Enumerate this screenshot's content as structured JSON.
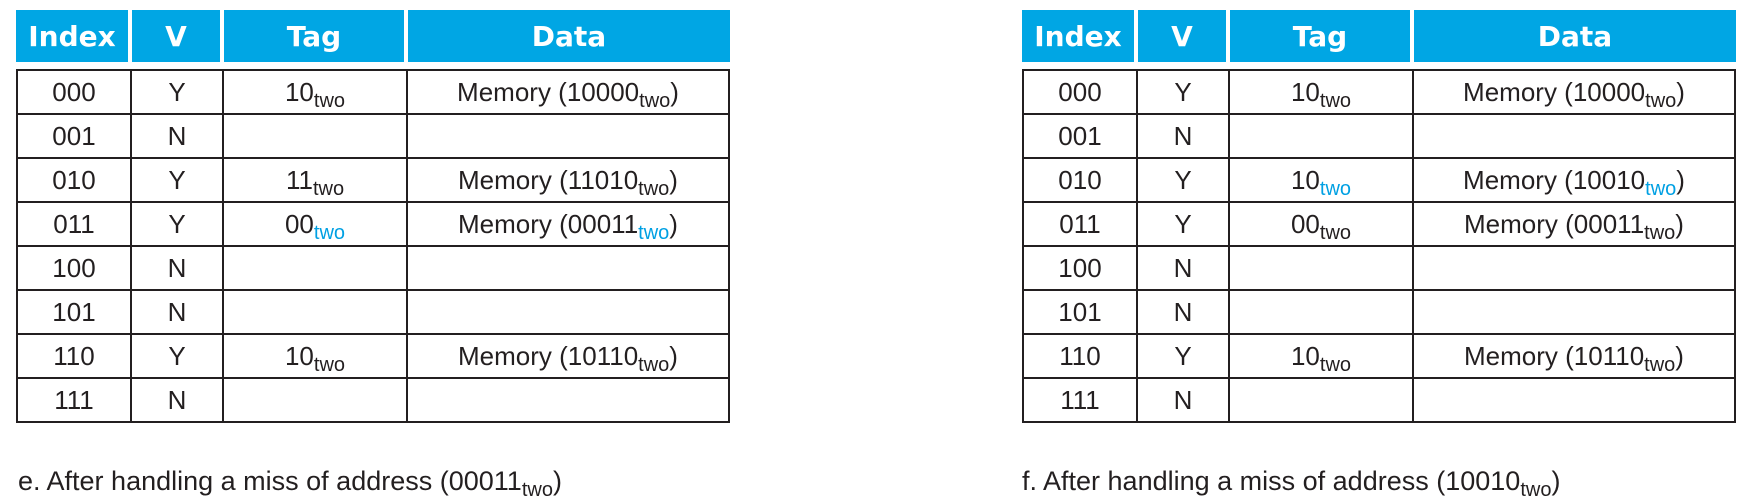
{
  "columns": [
    "Index",
    "V",
    "Tag",
    "Data"
  ],
  "sub_label": "two",
  "panels": [
    {
      "caption_prefix": "e. After handling a miss of address (",
      "caption_value": "00011",
      "caption_suffix": ")",
      "rows": [
        {
          "index": "000",
          "v": "Y",
          "tag": "10",
          "data_prefix": "Memory (",
          "data_value": "10000",
          "data_suffix": ")",
          "highlight": false
        },
        {
          "index": "001",
          "v": "N",
          "tag": "",
          "data_prefix": "",
          "data_value": "",
          "data_suffix": "",
          "highlight": false
        },
        {
          "index": "010",
          "v": "Y",
          "tag": "11",
          "data_prefix": "Memory (",
          "data_value": "11010",
          "data_suffix": ")",
          "highlight": false
        },
        {
          "index": "011",
          "v": "Y",
          "tag": "00",
          "data_prefix": "Memory (",
          "data_value": "00011",
          "data_suffix": ")",
          "highlight": true
        },
        {
          "index": "100",
          "v": "N",
          "tag": "",
          "data_prefix": "",
          "data_value": "",
          "data_suffix": "",
          "highlight": false
        },
        {
          "index": "101",
          "v": "N",
          "tag": "",
          "data_prefix": "",
          "data_value": "",
          "data_suffix": "",
          "highlight": false
        },
        {
          "index": "110",
          "v": "Y",
          "tag": "10",
          "data_prefix": "Memory (",
          "data_value": "10110",
          "data_suffix": ")",
          "highlight": false
        },
        {
          "index": "111",
          "v": "N",
          "tag": "",
          "data_prefix": "",
          "data_value": "",
          "data_suffix": "",
          "highlight": false
        }
      ]
    },
    {
      "caption_prefix": "f. After handling a miss of address (",
      "caption_value": "10010",
      "caption_suffix": ")",
      "rows": [
        {
          "index": "000",
          "v": "Y",
          "tag": "10",
          "data_prefix": "Memory (",
          "data_value": "10000",
          "data_suffix": ")",
          "highlight": false
        },
        {
          "index": "001",
          "v": "N",
          "tag": "",
          "data_prefix": "",
          "data_value": "",
          "data_suffix": "",
          "highlight": false
        },
        {
          "index": "010",
          "v": "Y",
          "tag": "10",
          "data_prefix": "Memory (",
          "data_value": "10010",
          "data_suffix": ")",
          "highlight": true
        },
        {
          "index": "011",
          "v": "Y",
          "tag": "00",
          "data_prefix": "Memory (",
          "data_value": "00011",
          "data_suffix": ")",
          "highlight": false
        },
        {
          "index": "100",
          "v": "N",
          "tag": "",
          "data_prefix": "",
          "data_value": "",
          "data_suffix": "",
          "highlight": false
        },
        {
          "index": "101",
          "v": "N",
          "tag": "",
          "data_prefix": "",
          "data_value": "",
          "data_suffix": "",
          "highlight": false
        },
        {
          "index": "110",
          "v": "Y",
          "tag": "10",
          "data_prefix": "Memory (",
          "data_value": "10110",
          "data_suffix": ")",
          "highlight": false
        },
        {
          "index": "111",
          "v": "N",
          "tag": "",
          "data_prefix": "",
          "data_value": "",
          "data_suffix": "",
          "highlight": false
        }
      ]
    }
  ],
  "colors": {
    "header_bg": "#00a6e4",
    "header_text": "#ffffff",
    "highlight": "#00a0e3",
    "text": "#231f20",
    "border": "#231f20"
  }
}
